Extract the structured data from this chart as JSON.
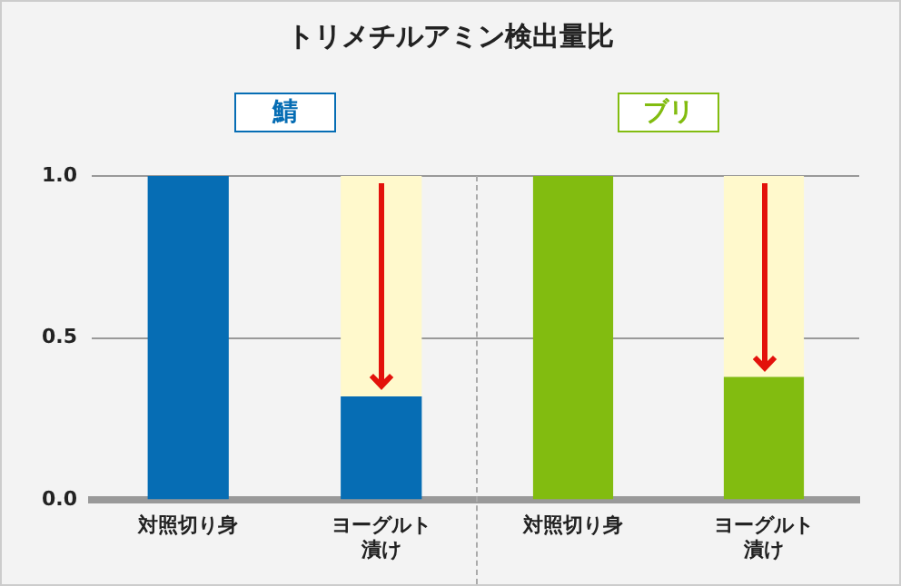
{
  "chart_data": [
    {
      "type": "bar",
      "title": "トリメチルアミン検出量比",
      "subtitle": "鯖",
      "categories": [
        "対照切り身",
        "ヨーグルト漬け"
      ],
      "stacked": true,
      "series": [
        {
          "color": "#066db4",
          "values": [
            1.0,
            0.32
          ]
        },
        {
          "color": "#fff9cc",
          "values": [
            null,
            0.68
          ]
        }
      ],
      "ylim": [
        0,
        1.0
      ],
      "yticks": [
        {
          "value": 0,
          "label": "0.0"
        },
        {
          "value": 0.5,
          "label": "0.5"
        },
        {
          "value": 1,
          "label": "1.0"
        }
      ],
      "grid": "y",
      "legend": false
    },
    {
      "type": "bar",
      "subtitle": "ブリ",
      "categories": [
        "対照切り身",
        "ヨーグルト漬け"
      ],
      "stacked": true,
      "series": [
        {
          "color": "#82bc10",
          "values": [
            1.0,
            0.38
          ]
        },
        {
          "color": "#fff9cc",
          "values": [
            null,
            0.62
          ]
        }
      ],
      "ylim": [
        0,
        1.0
      ],
      "yticks": [
        0,
        0.5,
        1
      ],
      "grid": "y",
      "legend": false,
      "tick_labels": "x"
    }
  ]
}
